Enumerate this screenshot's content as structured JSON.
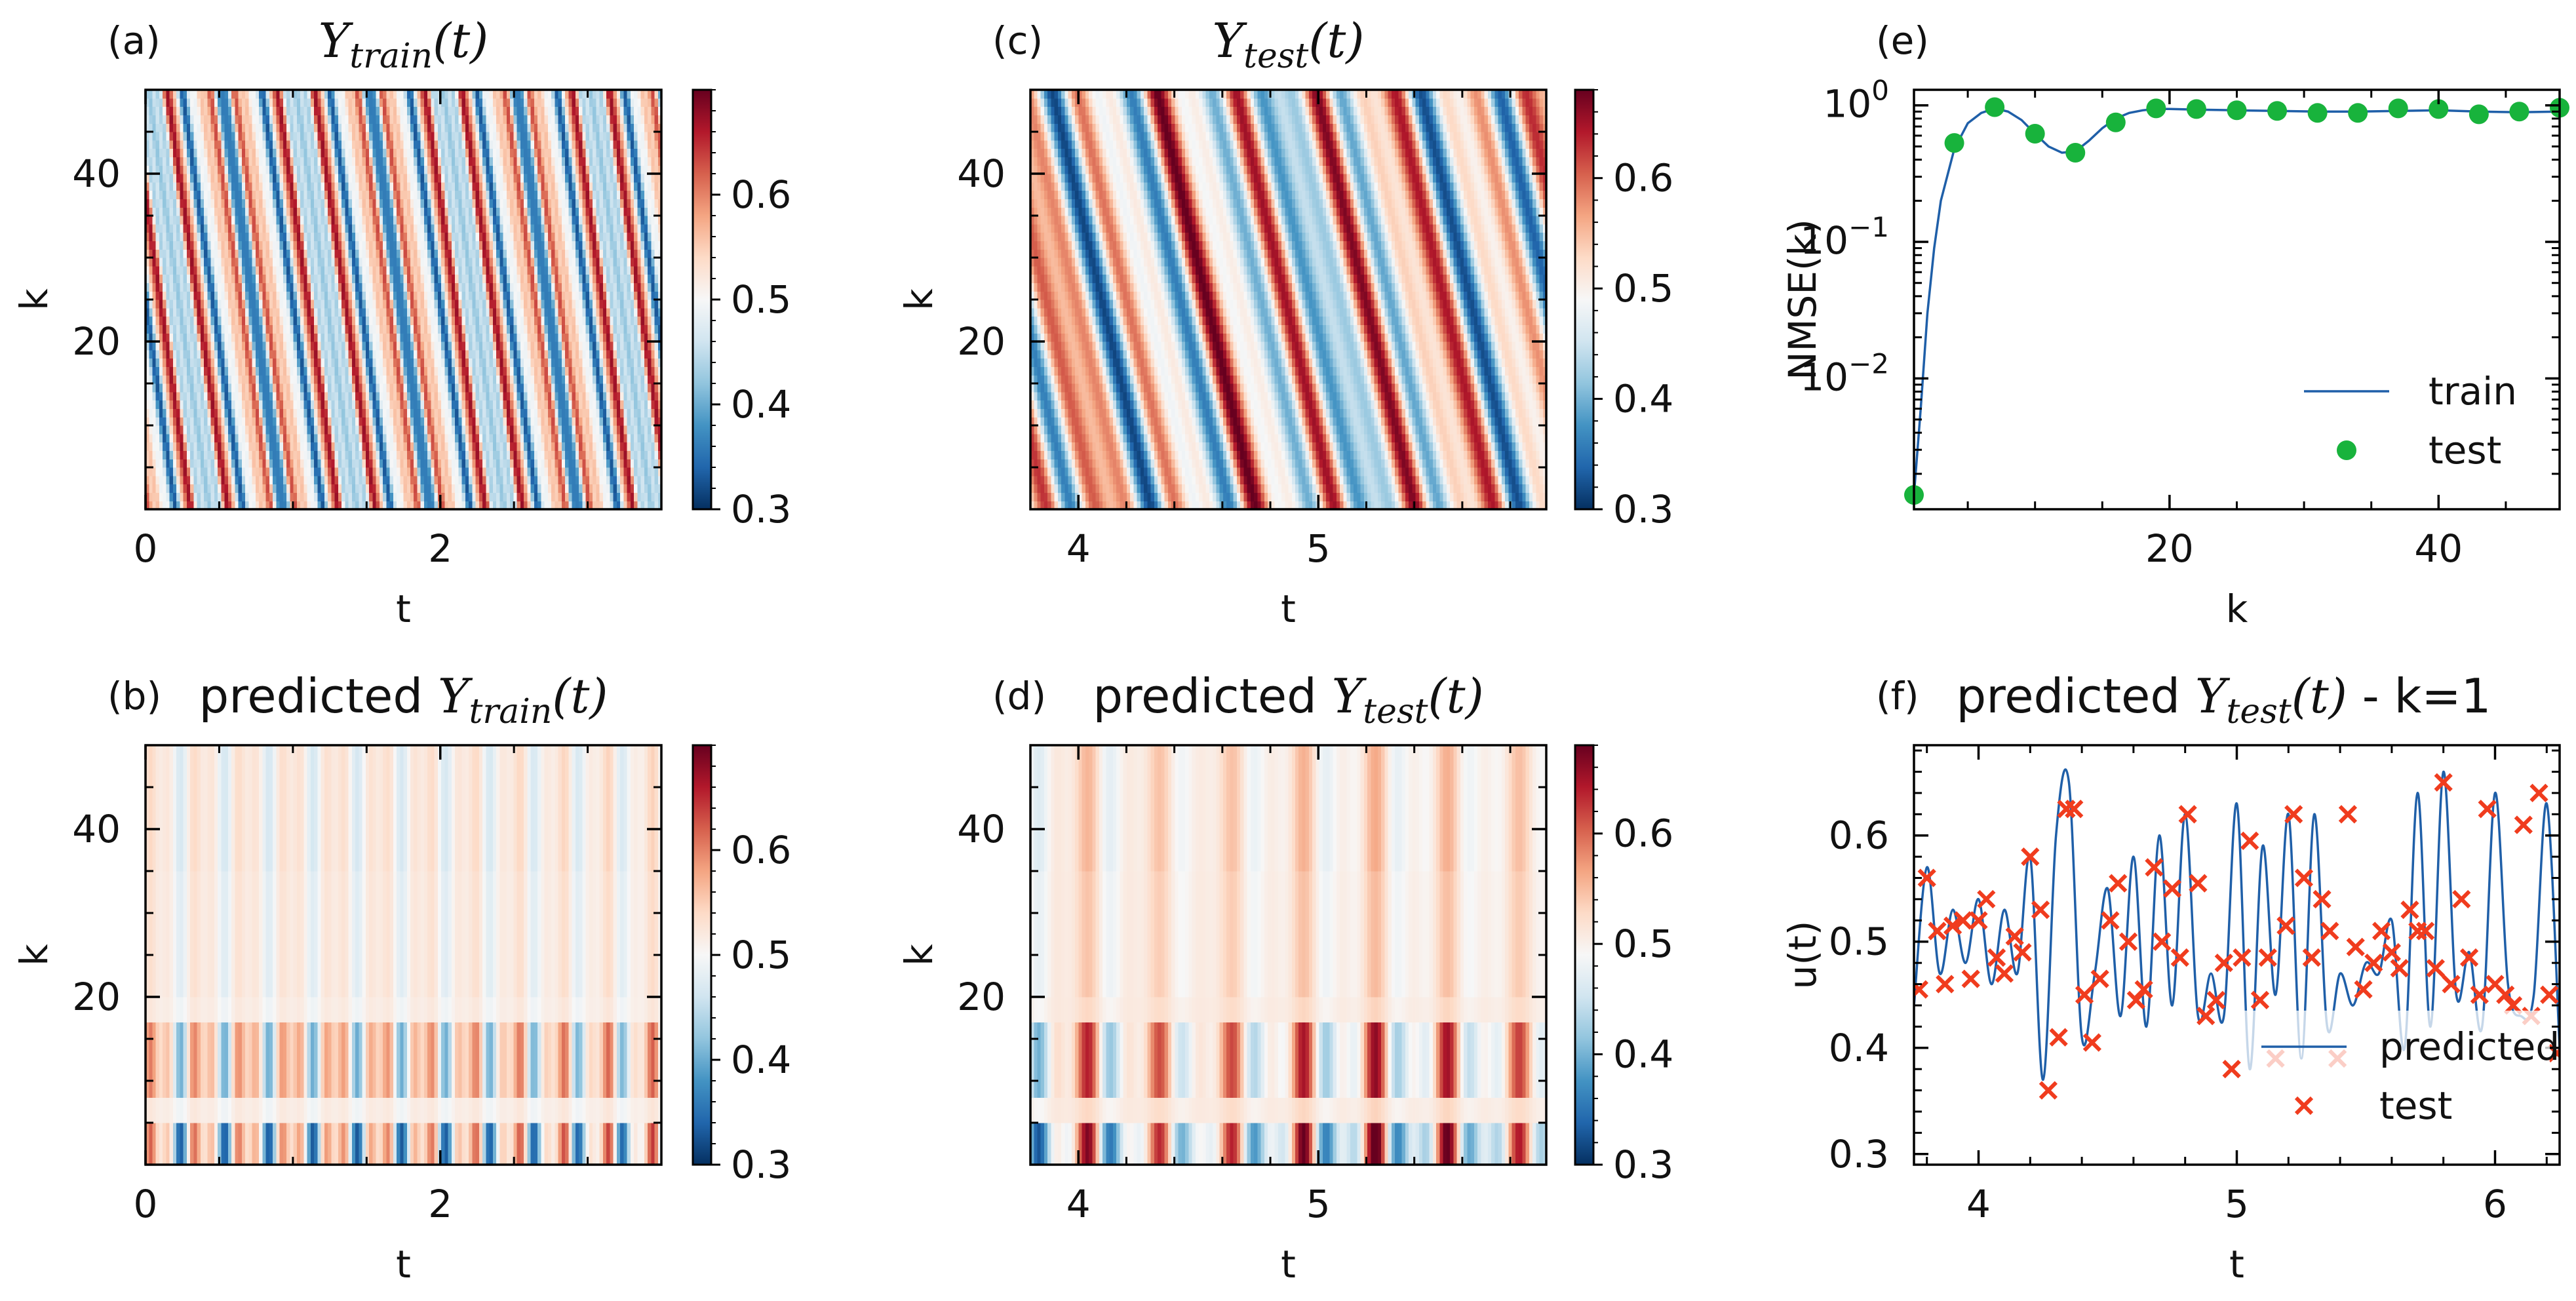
{
  "colors": {
    "cmap": [
      "#053061",
      "#2166ac",
      "#4393c3",
      "#92c5de",
      "#d1e5f0",
      "#f7f7f7",
      "#fddbc7",
      "#f4a582",
      "#d6604d",
      "#b2182b",
      "#67001f"
    ],
    "train_line": "#1f5fa8",
    "test_dot": "#18b33c",
    "test_cross": "#f03c1e",
    "axis": "#000000"
  },
  "chart_data": [
    {
      "id": "a",
      "type": "heatmap",
      "panel_label": "(a)",
      "title_main": "Y",
      "title_sub": "train",
      "title_tail": "(t)",
      "title_prefix": "",
      "xlabel": "t",
      "ylabel": "k",
      "xlim": [
        0,
        3.5
      ],
      "ylim": [
        0,
        50
      ],
      "xticks": [
        "0",
        "2"
      ],
      "xtick_values": [
        0,
        2
      ],
      "yticks": [
        "20",
        "40"
      ],
      "ytick_values": [
        20,
        40
      ],
      "colorbar": {
        "vmin": 0.3,
        "vmax": 0.7,
        "ticks": [
          "0.3",
          "0.4",
          "0.5",
          "0.6"
        ],
        "tick_values": [
          0.3,
          0.4,
          0.5,
          0.6
        ]
      },
      "pattern": "diagonal-waves"
    },
    {
      "id": "b",
      "type": "heatmap",
      "panel_label": "(b)",
      "title_prefix": "predicted ",
      "title_main": "Y",
      "title_sub": "train",
      "title_tail": "(t)",
      "xlabel": "t",
      "ylabel": "k",
      "xlim": [
        0,
        3.5
      ],
      "ylim": [
        0,
        50
      ],
      "xticks": [
        "0",
        "2"
      ],
      "xtick_values": [
        0,
        2
      ],
      "yticks": [
        "20",
        "40"
      ],
      "ytick_values": [
        20,
        40
      ],
      "colorbar": {
        "vmin": 0.3,
        "vmax": 0.7,
        "ticks": [
          "0.3",
          "0.4",
          "0.5",
          "0.6"
        ],
        "tick_values": [
          0.3,
          0.4,
          0.5,
          0.6
        ]
      },
      "pattern": "vertical-bands"
    },
    {
      "id": "c",
      "type": "heatmap",
      "panel_label": "(c)",
      "title_prefix": "",
      "title_main": "Y",
      "title_sub": "test",
      "title_tail": "(t)",
      "xlabel": "t",
      "ylabel": "k",
      "xlim": [
        3.8,
        5.95
      ],
      "ylim": [
        0,
        50
      ],
      "xticks": [
        "4",
        "5"
      ],
      "xtick_values": [
        4,
        5
      ],
      "yticks": [
        "20",
        "40"
      ],
      "ytick_values": [
        20,
        40
      ],
      "colorbar": {
        "vmin": 0.3,
        "vmax": 0.68,
        "ticks": [
          "0.3",
          "0.4",
          "0.5",
          "0.6"
        ],
        "tick_values": [
          0.3,
          0.4,
          0.5,
          0.6
        ]
      },
      "pattern": "diagonal-waves"
    },
    {
      "id": "d",
      "type": "heatmap",
      "panel_label": "(d)",
      "title_prefix": "predicted ",
      "title_main": "Y",
      "title_sub": "test",
      "title_tail": "(t)",
      "xlabel": "t",
      "ylabel": "k",
      "xlim": [
        3.8,
        5.95
      ],
      "ylim": [
        0,
        50
      ],
      "xticks": [
        "4",
        "5"
      ],
      "xtick_values": [
        4,
        5
      ],
      "yticks": [
        "20",
        "40"
      ],
      "ytick_values": [
        20,
        40
      ],
      "colorbar": {
        "vmin": 0.3,
        "vmax": 0.68,
        "ticks": [
          "0.3",
          "0.4",
          "0.5",
          "0.6"
        ],
        "tick_values": [
          0.3,
          0.4,
          0.5,
          0.6
        ]
      },
      "pattern": "vertical-bands"
    },
    {
      "id": "e",
      "type": "line",
      "panel_label": "(e)",
      "xlabel": "k",
      "ylabel": "NMSE(k)",
      "yscale": "log",
      "xlim": [
        1,
        49
      ],
      "ylim": [
        0.0011,
        1.3
      ],
      "xticks": [
        "20",
        "40"
      ],
      "xtick_values": [
        20,
        40
      ],
      "yticks": [
        {
          "base": "10",
          "exp": "0",
          "value": 1
        },
        {
          "base": "10",
          "exp": "−1",
          "value": 0.1
        },
        {
          "base": "10",
          "exp": "−2",
          "value": 0.01
        }
      ],
      "legend_position": "lower right",
      "series": [
        {
          "name": "train",
          "style": "line",
          "x": [
            1,
            1.5,
            2,
            2.5,
            3,
            4,
            5,
            6,
            7,
            8,
            9,
            10,
            11,
            12,
            13,
            14,
            15,
            16,
            17,
            18,
            19,
            20,
            22,
            25,
            28,
            31,
            34,
            37,
            40,
            43,
            46,
            49
          ],
          "y": [
            0.0014,
            0.006,
            0.03,
            0.09,
            0.2,
            0.48,
            0.74,
            0.88,
            0.95,
            0.9,
            0.78,
            0.62,
            0.5,
            0.45,
            0.46,
            0.55,
            0.68,
            0.8,
            0.88,
            0.92,
            0.94,
            0.94,
            0.93,
            0.92,
            0.91,
            0.9,
            0.9,
            0.91,
            0.92,
            0.9,
            0.89,
            0.9
          ]
        },
        {
          "name": "test",
          "style": "markers",
          "x": [
            1,
            4,
            7,
            10,
            13,
            16,
            19,
            22,
            25,
            28,
            31,
            34,
            37,
            40,
            43,
            46,
            49
          ],
          "y": [
            0.0014,
            0.53,
            0.97,
            0.62,
            0.45,
            0.75,
            0.95,
            0.94,
            0.92,
            0.91,
            0.88,
            0.88,
            0.95,
            0.94,
            0.86,
            0.9,
            0.96
          ]
        }
      ]
    },
    {
      "id": "f",
      "type": "line",
      "panel_label": "(f)",
      "title_prefix": "predicted ",
      "title_main": "Y",
      "title_sub": "test",
      "title_tail": "(t) - k=1",
      "xlabel": "t",
      "ylabel": "u(t)",
      "xlim": [
        3.75,
        6.25
      ],
      "ylim": [
        0.29,
        0.685
      ],
      "xticks": [
        "4",
        "5",
        "6"
      ],
      "xtick_values": [
        4,
        5,
        6
      ],
      "yticks": [
        "0.3",
        "0.4",
        "0.5",
        "0.6"
      ],
      "ytick_values": [
        0.3,
        0.4,
        0.5,
        0.6
      ],
      "legend_position": "lower right",
      "series": [
        {
          "name": "predicted",
          "style": "line",
          "x": [
            3.75,
            3.8,
            3.85,
            3.9,
            3.95,
            4.0,
            4.05,
            4.1,
            4.15,
            4.2,
            4.25,
            4.3,
            4.35,
            4.4,
            4.45,
            4.5,
            4.55,
            4.6,
            4.65,
            4.7,
            4.75,
            4.8,
            4.85,
            4.9,
            4.95,
            5.0,
            5.05,
            5.1,
            5.15,
            5.2,
            5.25,
            5.3,
            5.35,
            5.4,
            5.45,
            5.5,
            5.55,
            5.6,
            5.65,
            5.7,
            5.75,
            5.8,
            5.85,
            5.9,
            5.95,
            6.0,
            6.05,
            6.1,
            6.15,
            6.2,
            6.25
          ],
          "y": [
            0.44,
            0.57,
            0.47,
            0.53,
            0.48,
            0.54,
            0.46,
            0.53,
            0.47,
            0.58,
            0.37,
            0.6,
            0.65,
            0.41,
            0.47,
            0.55,
            0.43,
            0.58,
            0.42,
            0.6,
            0.44,
            0.62,
            0.43,
            0.47,
            0.43,
            0.63,
            0.38,
            0.59,
            0.45,
            0.62,
            0.39,
            0.62,
            0.42,
            0.47,
            0.44,
            0.48,
            0.47,
            0.52,
            0.4,
            0.64,
            0.42,
            0.66,
            0.45,
            0.49,
            0.42,
            0.64,
            0.46,
            0.43,
            0.45,
            0.63,
            0.4
          ]
        },
        {
          "name": "test",
          "style": "markers",
          "x": [
            3.77,
            3.8,
            3.84,
            3.87,
            3.9,
            3.94,
            3.97,
            4.0,
            4.03,
            4.07,
            4.1,
            4.14,
            4.17,
            4.2,
            4.24,
            4.27,
            4.31,
            4.34,
            4.37,
            4.41,
            4.44,
            4.47,
            4.51,
            4.54,
            4.58,
            4.61,
            4.64,
            4.68,
            4.71,
            4.75,
            4.78,
            4.81,
            4.85,
            4.88,
            4.92,
            4.95,
            4.98,
            5.02,
            5.05,
            5.09,
            5.12,
            5.15,
            5.19,
            5.22,
            5.26,
            5.29,
            5.33,
            5.36,
            5.39,
            5.43,
            5.46,
            5.49,
            5.53,
            5.56,
            5.6,
            5.63,
            5.67,
            5.7,
            5.73,
            5.77,
            5.8,
            5.83,
            5.87,
            5.9,
            5.94,
            5.97,
            6.0,
            6.04,
            6.07,
            6.11,
            6.14,
            6.17,
            6.21,
            6.24
          ],
          "y": [
            0.455,
            0.56,
            0.51,
            0.46,
            0.515,
            0.52,
            0.465,
            0.52,
            0.54,
            0.485,
            0.47,
            0.505,
            0.49,
            0.58,
            0.53,
            0.36,
            0.41,
            0.625,
            0.625,
            0.45,
            0.405,
            0.465,
            0.52,
            0.555,
            0.5,
            0.445,
            0.455,
            0.57,
            0.5,
            0.55,
            0.485,
            0.62,
            0.555,
            0.43,
            0.445,
            0.48,
            0.38,
            0.485,
            0.595,
            0.445,
            0.485,
            0.39,
            0.515,
            0.62,
            0.56,
            0.485,
            0.54,
            0.51,
            0.39,
            0.62,
            0.495,
            0.455,
            0.48,
            0.51,
            0.49,
            0.475,
            0.53,
            0.51,
            0.51,
            0.475,
            0.65,
            0.46,
            0.54,
            0.485,
            0.45,
            0.625,
            0.46,
            0.45,
            0.44,
            0.61,
            0.43,
            0.64,
            0.45,
            0.395
          ]
        }
      ]
    }
  ]
}
